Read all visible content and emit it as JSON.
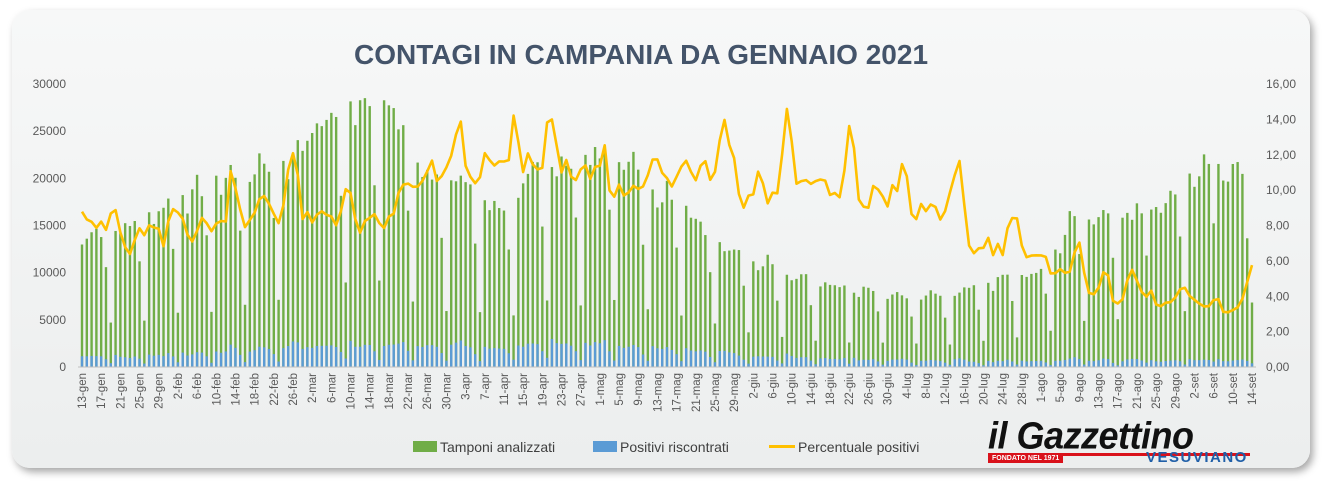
{
  "chart_data": {
    "type": "bar",
    "title": "CONTAGI IN CAMPANIA DA GENNAIO 2021",
    "y_left": {
      "min": 0,
      "max": 30000,
      "ticks": [
        "0",
        "5000",
        "10000",
        "15000",
        "20000",
        "25000",
        "30000"
      ]
    },
    "y_right": {
      "min": 0,
      "max": 16,
      "ticks": [
        "0,00",
        "2,00",
        "4,00",
        "6,00",
        "8,00",
        "10,00",
        "12,00",
        "14,00",
        "16,00"
      ]
    },
    "x_tick_labels": [
      "13-gen",
      "17-gen",
      "21-gen",
      "25-gen",
      "29-gen",
      "2-feb",
      "6-feb",
      "10-feb",
      "14-feb",
      "18-feb",
      "22-feb",
      "26-feb",
      "2-mar",
      "6-mar",
      "10-mar",
      "14-mar",
      "18-mar",
      "22-mar",
      "26-mar",
      "30-mar",
      "3-apr",
      "7-apr",
      "11-apr",
      "15-apr",
      "19-apr",
      "23-apr",
      "27-apr",
      "1-mag",
      "5-mag",
      "9-mag",
      "13-mag",
      "17-mag",
      "21-mag",
      "25-mag",
      "29-mag",
      "2-giu",
      "6-giu",
      "10-giu",
      "14-giu",
      "18-giu",
      "22-giu",
      "26-giu",
      "30-giu",
      "4-lug",
      "8-lug",
      "12-lug",
      "16-lug",
      "20-lug",
      "24-lug",
      "28-lug",
      "1-ago",
      "5-ago",
      "9-ago",
      "13-ago",
      "17-ago",
      "21-ago",
      "25-ago",
      "29-ago",
      "2-set",
      "6-set",
      "10-set",
      "14-set"
    ],
    "legend_position": "bottom",
    "series": [
      {
        "name": "Tamponi analizzati",
        "color": "#70ad47",
        "axis": "left",
        "anchor_points": [
          [
            0,
            13500
          ],
          [
            8,
            14500
          ],
          [
            16,
            16000
          ],
          [
            24,
            18000
          ],
          [
            32,
            20000
          ],
          [
            40,
            21000
          ],
          [
            48,
            22000
          ],
          [
            52,
            25000
          ],
          [
            56,
            26500
          ],
          [
            60,
            27000
          ],
          [
            64,
            27500
          ],
          [
            68,
            26000
          ],
          [
            72,
            22000
          ],
          [
            76,
            20000
          ],
          [
            80,
            19000
          ],
          [
            84,
            19500
          ],
          [
            88,
            17000
          ],
          [
            92,
            16500
          ],
          [
            96,
            19000
          ],
          [
            100,
            21000
          ],
          [
            104,
            21500
          ],
          [
            108,
            21000
          ],
          [
            112,
            22000
          ],
          [
            116,
            22000
          ],
          [
            120,
            20500
          ],
          [
            124,
            18000
          ],
          [
            128,
            17500
          ],
          [
            132,
            16500
          ],
          [
            136,
            14500
          ],
          [
            140,
            13000
          ],
          [
            144,
            12000
          ],
          [
            148,
            11000
          ],
          [
            152,
            10000
          ],
          [
            156,
            9500
          ],
          [
            160,
            9000
          ],
          [
            164,
            8500
          ],
          [
            168,
            8000
          ],
          [
            172,
            8000
          ],
          [
            176,
            7500
          ],
          [
            180,
            7500
          ],
          [
            184,
            7500
          ],
          [
            188,
            7500
          ],
          [
            192,
            8000
          ],
          [
            196,
            8500
          ],
          [
            200,
            9000
          ],
          [
            204,
            9500
          ],
          [
            208,
            9500
          ],
          [
            212,
            12000
          ],
          [
            216,
            15500
          ],
          [
            220,
            16500
          ],
          [
            224,
            16000
          ],
          [
            228,
            16000
          ],
          [
            232,
            15500
          ],
          [
            236,
            17000
          ],
          [
            240,
            19000
          ],
          [
            244,
            20500
          ],
          [
            248,
            20500
          ],
          [
            252,
            19500
          ],
          [
            255,
            20200
          ]
        ],
        "weekly_pattern": [
          1.0,
          0.97,
          1.03,
          1.06,
          1.01,
          0.72,
          0.32
        ],
        "spike_indices": [
          29,
          49,
          50,
          59,
          67,
          83,
          90,
          150,
          166,
          171,
          208,
          233,
          241,
          245,
          246,
          248
        ]
      },
      {
        "name": "Positivi riscontrati",
        "color": "#5b9bd5",
        "axis": "left",
        "derived_from": "Tamponi analizzati x Percentuale positivi / 100"
      },
      {
        "name": "Percentuale positivi",
        "color": "#ffc000",
        "axis": "right",
        "anchor_points": [
          [
            0,
            9.4
          ],
          [
            2,
            8.4
          ],
          [
            5,
            7.5
          ],
          [
            7,
            9.2
          ],
          [
            9,
            6.8
          ],
          [
            11,
            6.4
          ],
          [
            13,
            7.8
          ],
          [
            16,
            7.7
          ],
          [
            18,
            6.8
          ],
          [
            20,
            9.0
          ],
          [
            22,
            8.4
          ],
          [
            24,
            7.5
          ],
          [
            26,
            8.0
          ],
          [
            29,
            8.1
          ],
          [
            31,
            7.9
          ],
          [
            33,
            11.8
          ],
          [
            35,
            8.4
          ],
          [
            37,
            8.0
          ],
          [
            40,
            9.8
          ],
          [
            43,
            8.2
          ],
          [
            46,
            12.4
          ],
          [
            48,
            8.8
          ],
          [
            50,
            7.9
          ],
          [
            53,
            8.8
          ],
          [
            56,
            8.4
          ],
          [
            58,
            10.1
          ],
          [
            60,
            8.0
          ],
          [
            62,
            7.8
          ],
          [
            64,
            8.2
          ],
          [
            66,
            8.1
          ],
          [
            68,
            8.2
          ],
          [
            70,
            10.8
          ],
          [
            72,
            9.7
          ],
          [
            75,
            10.4
          ],
          [
            77,
            11.2
          ],
          [
            79,
            10.0
          ],
          [
            81,
            12.8
          ],
          [
            83,
            13.2
          ],
          [
            85,
            10.2
          ],
          [
            87,
            11.5
          ],
          [
            89,
            11.2
          ],
          [
            91,
            11.5
          ],
          [
            93,
            10.6
          ],
          [
            94,
            14.3
          ],
          [
            96,
            11.5
          ],
          [
            98,
            11.9
          ],
          [
            100,
            10.8
          ],
          [
            102,
            14.3
          ],
          [
            104,
            11.6
          ],
          [
            106,
            12.0
          ],
          [
            108,
            10.0
          ],
          [
            110,
            10.8
          ],
          [
            112,
            10.4
          ],
          [
            114,
            12.3
          ],
          [
            116,
            10.0
          ],
          [
            118,
            9.8
          ],
          [
            120,
            10.2
          ],
          [
            123,
            10.9
          ],
          [
            126,
            11.5
          ],
          [
            128,
            10.3
          ],
          [
            130,
            10.6
          ],
          [
            132,
            11.6
          ],
          [
            134,
            11.0
          ],
          [
            136,
            12.0
          ],
          [
            138,
            11.0
          ],
          [
            140,
            13.9
          ],
          [
            142,
            13.0
          ],
          [
            144,
            9.5
          ],
          [
            146,
            9.3
          ],
          [
            148,
            11.0
          ],
          [
            150,
            9.9
          ],
          [
            152,
            9.4
          ],
          [
            154,
            14.6
          ],
          [
            156,
            11.0
          ],
          [
            158,
            10.2
          ],
          [
            160,
            11.0
          ],
          [
            162,
            10.0
          ],
          [
            164,
            9.8
          ],
          [
            166,
            9.3
          ],
          [
            168,
            13.5
          ],
          [
            170,
            9.6
          ],
          [
            172,
            9.1
          ],
          [
            174,
            10.2
          ],
          [
            176,
            9.4
          ],
          [
            178,
            10.3
          ],
          [
            180,
            11.1
          ],
          [
            182,
            8.0
          ],
          [
            184,
            9.0
          ],
          [
            186,
            9.1
          ],
          [
            188,
            8.7
          ],
          [
            190,
            9.4
          ],
          [
            192,
            11.0
          ],
          [
            194,
            7.0
          ],
          [
            196,
            6.5
          ],
          [
            198,
            7.2
          ],
          [
            200,
            6.6
          ],
          [
            202,
            6.8
          ],
          [
            204,
            9.7
          ],
          [
            206,
            6.3
          ],
          [
            208,
            6.0
          ],
          [
            210,
            6.1
          ],
          [
            212,
            5.5
          ],
          [
            214,
            5.8
          ],
          [
            216,
            5.0
          ],
          [
            218,
            7.3
          ],
          [
            220,
            4.5
          ],
          [
            222,
            4.2
          ],
          [
            224,
            5.3
          ],
          [
            226,
            3.6
          ]
        ],
        "anchor_points_late": [
          [
            226,
            3.6
          ],
          [
            228,
            4.0
          ],
          [
            230,
            5.6
          ],
          [
            232,
            4.0
          ],
          [
            234,
            4.1
          ],
          [
            236,
            3.4
          ],
          [
            238,
            3.6
          ],
          [
            240,
            4.1
          ],
          [
            242,
            4.3
          ],
          [
            244,
            3.4
          ],
          [
            246,
            3.3
          ],
          [
            248,
            4.2
          ],
          [
            250,
            3.0
          ],
          [
            252,
            3.1
          ],
          [
            254,
            3.8
          ],
          [
            256,
            5.8
          ]
        ],
        "notes": "Excerpt of readings; full series drawn by script"
      }
    ]
  }
}
